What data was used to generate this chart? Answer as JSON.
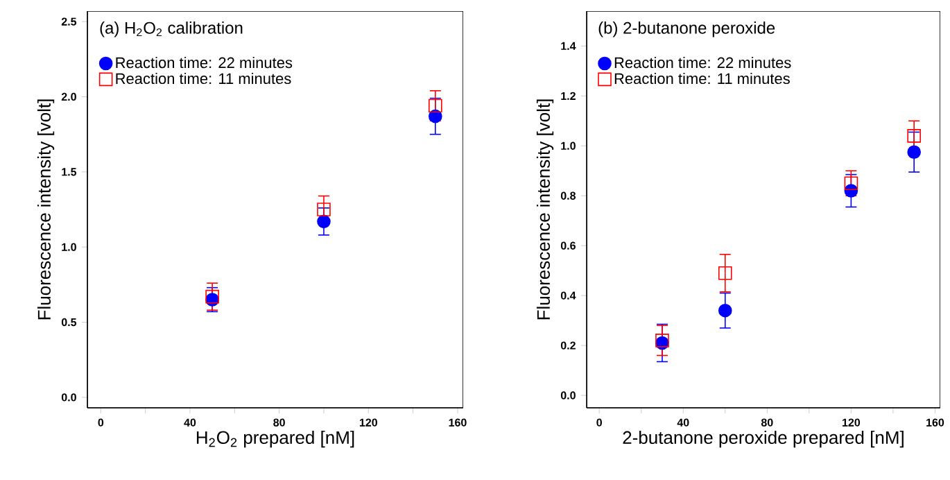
{
  "chart_data": [
    {
      "type": "scatter",
      "title": "(a) H$_{2}$O$_{2}$ calibration",
      "xlabel": "H$_{2}$O$_{2}$ prepared [nM]",
      "ylabel": "Fluorescence intensity [volt]",
      "legend": "top left",
      "xlim": [
        -6,
        162.5
      ],
      "ylim": [
        -0.07,
        2.57
      ],
      "xticks": [
        0,
        {
          "value": 20,
          "label": null
        },
        40,
        {
          "value": 60,
          "label": null
        },
        80,
        {
          "value": 100,
          "label": null
        },
        120,
        {
          "value": 140,
          "label": null
        },
        160
      ],
      "yticks": [
        {
          "value": 0,
          "label": "0.0"
        },
        0.5,
        {
          "value": 1,
          "label": "1.0"
        },
        1.5,
        {
          "value": 2,
          "label": "2.0"
        },
        2.5
      ],
      "x": [
        50,
        100,
        150
      ],
      "series": [
        {
          "name": "Reaction time: 22 minutes",
          "color": "#0000ff",
          "marker": "circle",
          "values": [
            0.65,
            1.17,
            1.87
          ],
          "errors": [
            0.08,
            0.09,
            0.12
          ]
        },
        {
          "name": "Reaction time: 11 minutes",
          "color": "#ff0000",
          "marker": "square",
          "values": [
            0.67,
            1.25,
            1.94
          ],
          "errors": [
            0.09,
            0.09,
            0.1
          ]
        }
      ]
    },
    {
      "type": "scatter",
      "title": "(b) 2-butanone peroxide",
      "xlabel": "2-butanone peroxide prepared [nM]",
      "ylabel": "Fluorescence intensity [volt]",
      "legend": "top left",
      "xlim": [
        -6,
        162.5
      ],
      "ylim": [
        -0.05,
        1.54
      ],
      "xticks": [
        0,
        {
          "value": 20,
          "label": null
        },
        40,
        {
          "value": 60,
          "label": null
        },
        80,
        {
          "value": 100,
          "label": null
        },
        120,
        {
          "value": 140,
          "label": null
        },
        160
      ],
      "yticks": [
        {
          "value": 0,
          "label": "0.0"
        },
        0.2,
        0.4,
        0.6,
        0.8,
        {
          "value": 1,
          "label": "1.0"
        },
        1.2,
        1.4
      ],
      "x": [
        30,
        60,
        120,
        150
      ],
      "series": [
        {
          "name": "Reaction time: 22 minutes",
          "color": "#0000ff",
          "marker": "circle",
          "values": [
            0.21,
            0.34,
            0.82,
            0.975
          ],
          "errors": [
            0.075,
            0.07,
            0.065,
            0.08
          ]
        },
        {
          "name": "Reaction time: 11 minutes",
          "color": "#ff0000",
          "marker": "square",
          "values": [
            0.22,
            0.49,
            0.85,
            1.04
          ],
          "errors": [
            0.06,
            0.075,
            0.05,
            0.06
          ]
        }
      ]
    }
  ]
}
